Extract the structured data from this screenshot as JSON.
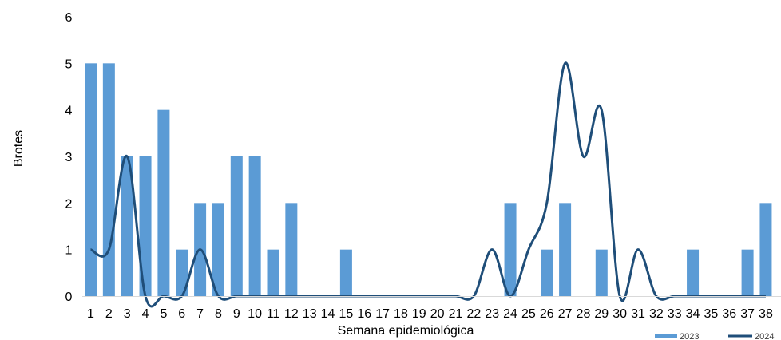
{
  "chart_data": {
    "type": "bar",
    "xlabel": "Semana epidemiológica",
    "ylabel": "Brotes",
    "ylim": [
      0,
      6
    ],
    "yticks": [
      0,
      1,
      2,
      3,
      4,
      5,
      6
    ],
    "categories": [
      "1",
      "2",
      "3",
      "4",
      "5",
      "6",
      "7",
      "8",
      "9",
      "10",
      "11",
      "12",
      "13",
      "14",
      "15",
      "16",
      "17",
      "18",
      "19",
      "20",
      "21",
      "22",
      "23",
      "24",
      "25",
      "26",
      "27",
      "28",
      "29",
      "30",
      "31",
      "32",
      "33",
      "34",
      "35",
      "36",
      "37",
      "38"
    ],
    "series": [
      {
        "name": "2023",
        "type": "bar",
        "color": "#5b9bd5",
        "values": [
          5,
          5,
          3,
          3,
          4,
          1,
          2,
          2,
          3,
          3,
          1,
          2,
          0,
          0,
          1,
          0,
          0,
          0,
          0,
          0,
          0,
          0,
          0,
          2,
          0,
          1,
          2,
          0,
          1,
          0,
          0,
          0,
          0,
          1,
          0,
          0,
          1,
          2
        ]
      },
      {
        "name": "2024",
        "type": "line",
        "smooth": true,
        "color": "#1f4e79",
        "values": [
          1,
          1,
          3,
          0,
          0,
          0,
          1,
          0,
          0,
          0,
          0,
          0,
          0,
          0,
          0,
          0,
          0,
          0,
          0,
          0,
          0,
          0,
          1,
          0,
          1,
          2,
          5,
          3,
          4,
          0,
          1,
          0,
          0,
          0,
          0,
          0,
          0,
          0
        ]
      }
    ],
    "grid": false,
    "legend_position": "bottom-right"
  }
}
